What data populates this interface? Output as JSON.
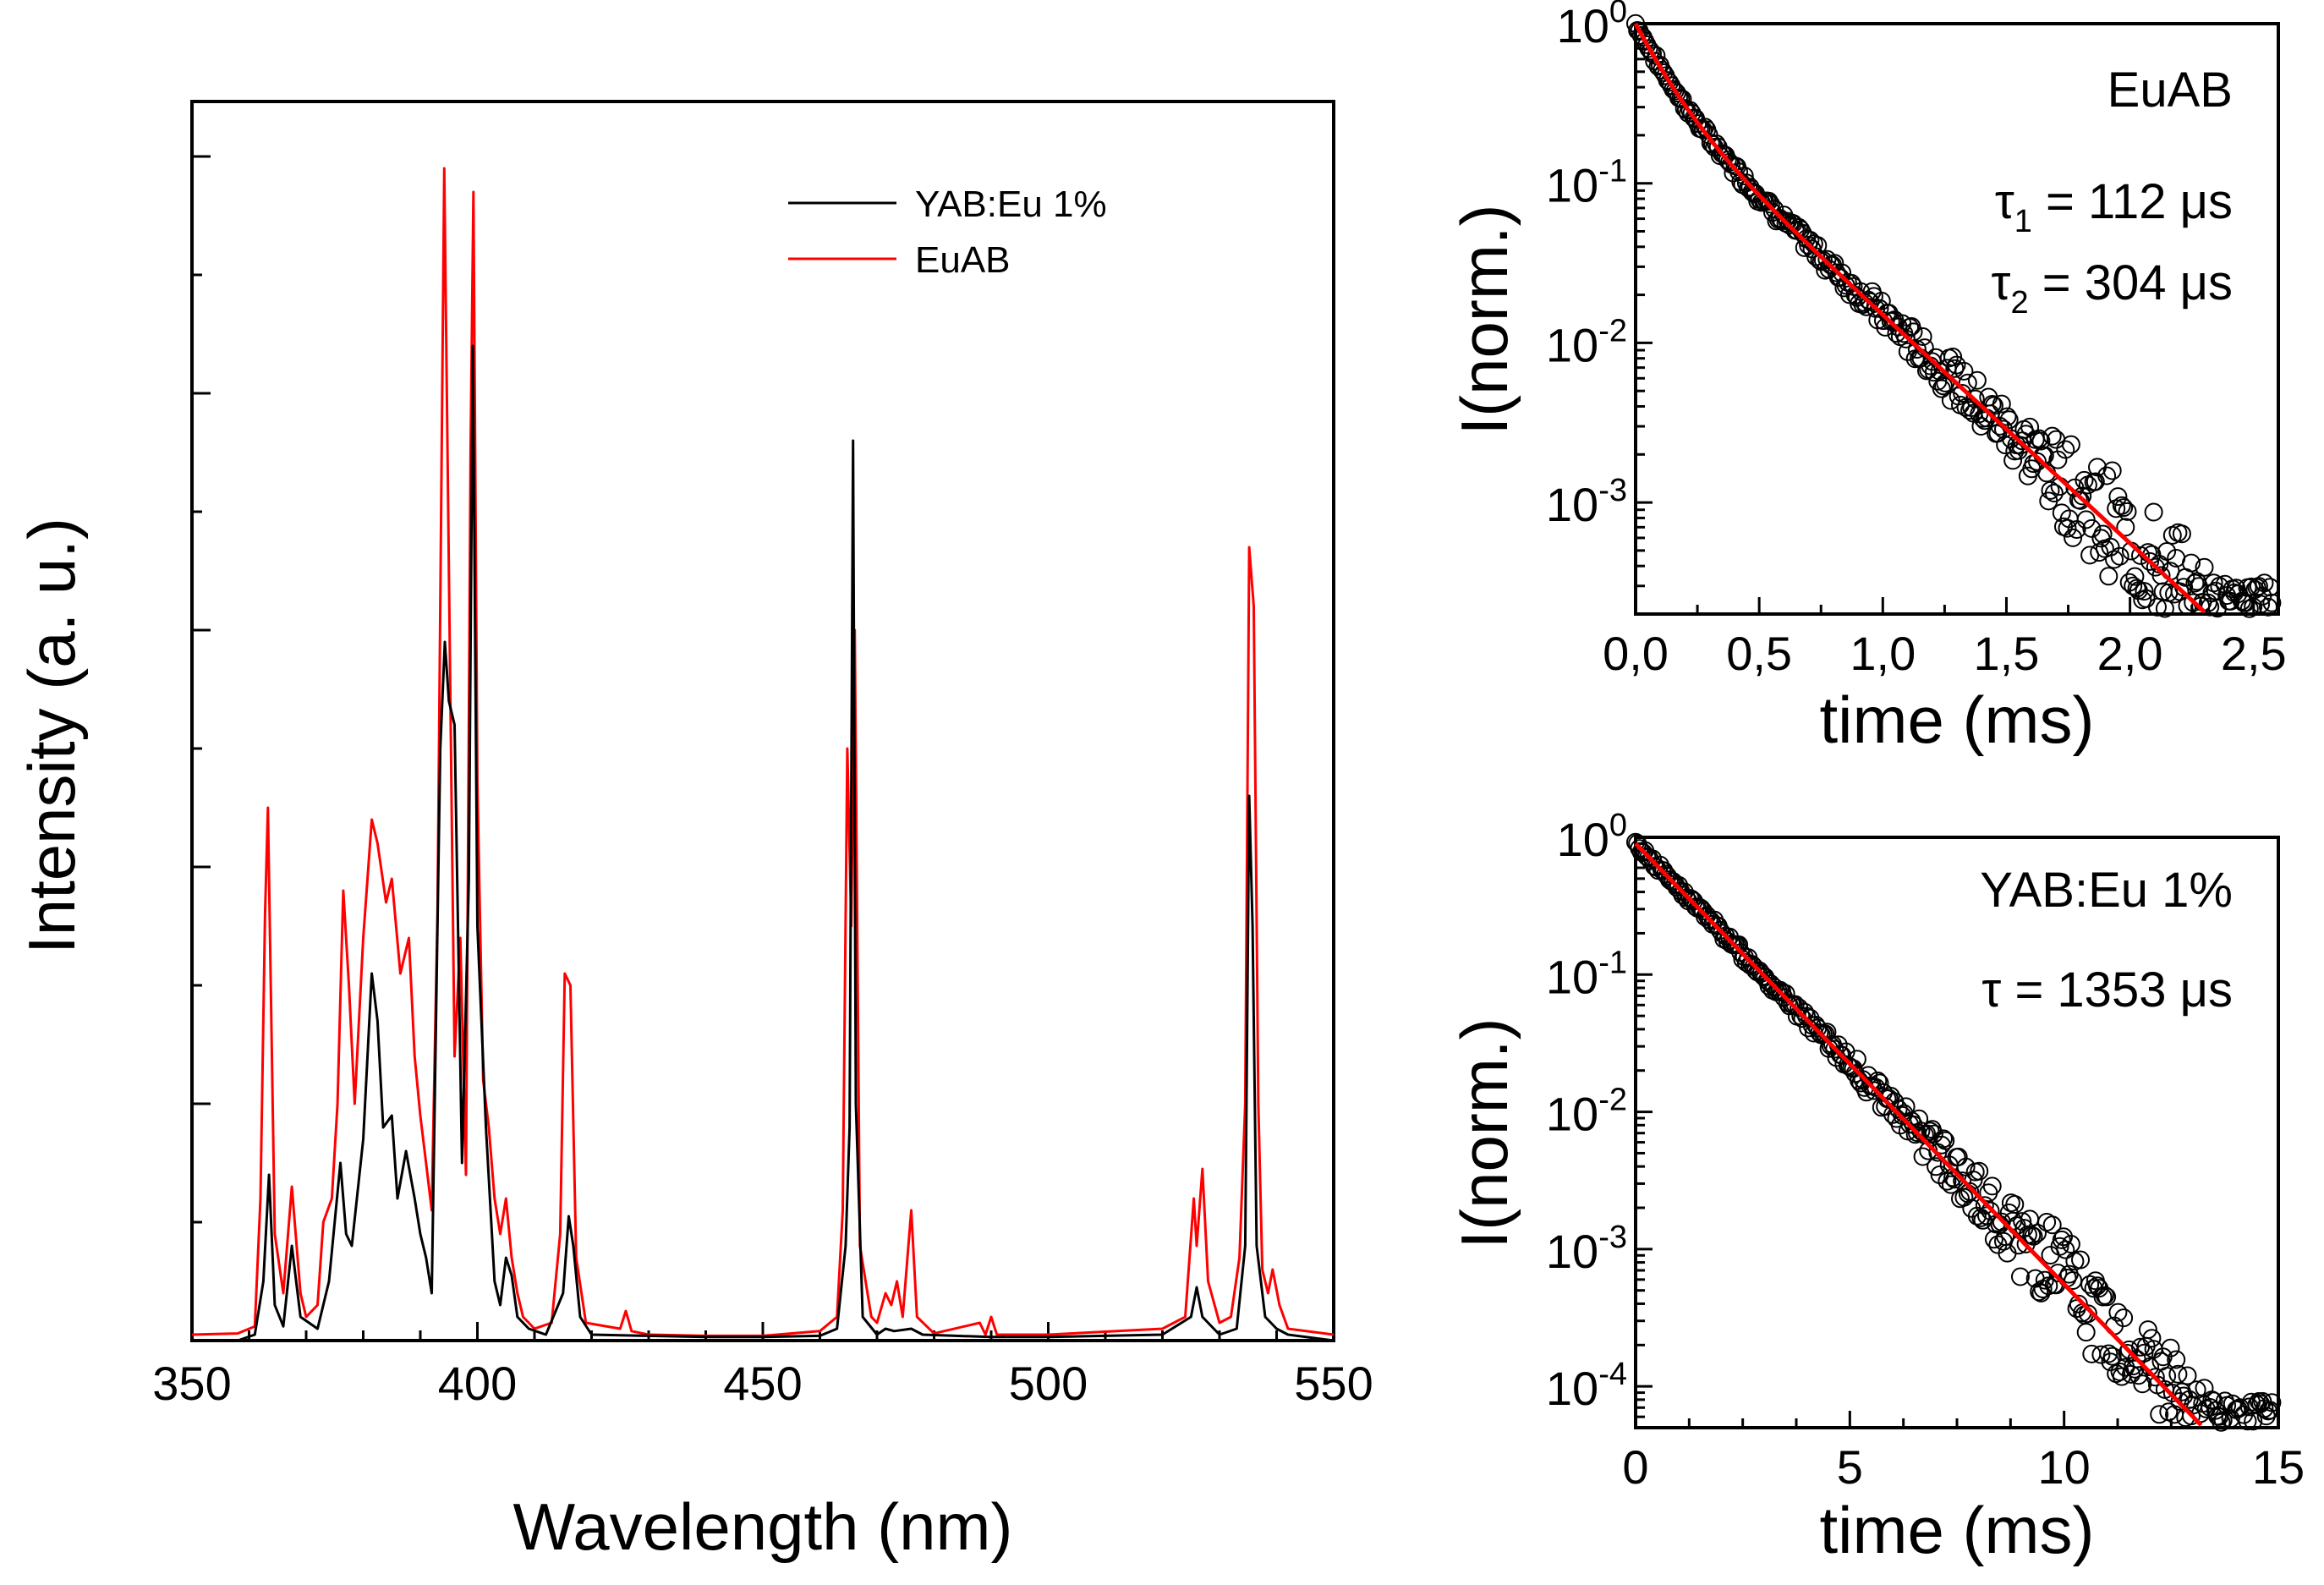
{
  "chart_data": [
    {
      "type": "line",
      "id": "spectrum",
      "title": "",
      "xlabel": "Wavelength (nm)",
      "ylabel": "Intensity (a. u.)",
      "xlim": [
        350,
        550
      ],
      "ylim": [
        0,
        1.0
      ],
      "x_ticks": [
        350,
        400,
        450,
        500,
        550
      ],
      "x_tick_labels": [
        "350",
        "400",
        "450",
        "500",
        "550"
      ],
      "y_tick_labels_shown": false,
      "legend_position": "top-right",
      "colors": {
        "YAB:Eu 1%": "#000000",
        "EuAB": "#ff0000"
      },
      "series": [
        {
          "name": "YAB:Eu 1%",
          "color": "#000000",
          "points": [
            [
              350,
              0.0
            ],
            [
              358,
              0.0
            ],
            [
              361,
              0.005
            ],
            [
              362.5,
              0.05
            ],
            [
              363.5,
              0.14
            ],
            [
              364.5,
              0.03
            ],
            [
              366,
              0.012
            ],
            [
              367.5,
              0.08
            ],
            [
              369,
              0.02
            ],
            [
              372,
              0.01
            ],
            [
              374,
              0.05
            ],
            [
              376,
              0.15
            ],
            [
              377,
              0.09
            ],
            [
              378,
              0.08
            ],
            [
              380,
              0.17
            ],
            [
              381.5,
              0.31
            ],
            [
              382.5,
              0.27
            ],
            [
              383.5,
              0.18
            ],
            [
              385,
              0.19
            ],
            [
              386,
              0.12
            ],
            [
              387.5,
              0.16
            ],
            [
              389,
              0.12
            ],
            [
              390,
              0.09
            ],
            [
              391,
              0.07
            ],
            [
              392,
              0.04
            ],
            [
              393.5,
              0.5
            ],
            [
              394.3,
              0.59
            ],
            [
              395,
              0.54
            ],
            [
              396,
              0.52
            ],
            [
              397.3,
              0.15
            ],
            [
              398.5,
              0.39
            ],
            [
              399.2,
              0.84
            ],
            [
              400,
              0.35
            ],
            [
              401.5,
              0.18
            ],
            [
              403,
              0.05
            ],
            [
              404,
              0.03
            ],
            [
              405,
              0.07
            ],
            [
              406,
              0.055
            ],
            [
              407,
              0.02
            ],
            [
              409,
              0.01
            ],
            [
              412,
              0.005
            ],
            [
              415,
              0.04
            ],
            [
              416,
              0.105
            ],
            [
              416.8,
              0.08
            ],
            [
              418,
              0.02
            ],
            [
              420,
              0.005
            ],
            [
              430,
              0.004
            ],
            [
              440,
              0.003
            ],
            [
              450,
              0.003
            ],
            [
              460,
              0.004
            ],
            [
              463,
              0.01
            ],
            [
              464.5,
              0.08
            ],
            [
              465.2,
              0.18
            ],
            [
              465.8,
              0.76
            ],
            [
              466.3,
              0.2
            ],
            [
              467.5,
              0.02
            ],
            [
              470,
              0.005
            ],
            [
              471.5,
              0.01
            ],
            [
              473,
              0.008
            ],
            [
              476,
              0.01
            ],
            [
              478,
              0.005
            ],
            [
              490,
              0.003
            ],
            [
              500,
              0.003
            ],
            [
              520,
              0.005
            ],
            [
              525,
              0.02
            ],
            [
              526,
              0.045
            ],
            [
              527,
              0.02
            ],
            [
              530,
              0.005
            ],
            [
              533,
              0.01
            ],
            [
              534.5,
              0.08
            ],
            [
              535.2,
              0.46
            ],
            [
              535.8,
              0.35
            ],
            [
              536.5,
              0.08
            ],
            [
              538,
              0.02
            ],
            [
              539,
              0.015
            ],
            [
              540,
              0.01
            ],
            [
              542,
              0.005
            ],
            [
              550,
              0.0
            ]
          ]
        },
        {
          "name": "EuAB",
          "color": "#ff0000",
          "points": [
            [
              350,
              0.005
            ],
            [
              358,
              0.006
            ],
            [
              361,
              0.012
            ],
            [
              362,
              0.12
            ],
            [
              362.8,
              0.36
            ],
            [
              363.3,
              0.45
            ],
            [
              364.5,
              0.09
            ],
            [
              366,
              0.04
            ],
            [
              367.5,
              0.13
            ],
            [
              369,
              0.04
            ],
            [
              370,
              0.02
            ],
            [
              372,
              0.03
            ],
            [
              373,
              0.1
            ],
            [
              374.5,
              0.12
            ],
            [
              375.5,
              0.2
            ],
            [
              376.5,
              0.38
            ],
            [
              377.5,
              0.3
            ],
            [
              378.5,
              0.2
            ],
            [
              380,
              0.34
            ],
            [
              381.5,
              0.44
            ],
            [
              382.5,
              0.42
            ],
            [
              384,
              0.37
            ],
            [
              385,
              0.39
            ],
            [
              386.5,
              0.31
            ],
            [
              388,
              0.34
            ],
            [
              389,
              0.24
            ],
            [
              390,
              0.19
            ],
            [
              391,
              0.15
            ],
            [
              392,
              0.11
            ],
            [
              393,
              0.36
            ],
            [
              394.2,
              0.99
            ],
            [
              395,
              0.65
            ],
            [
              396,
              0.24
            ],
            [
              397,
              0.34
            ],
            [
              398,
              0.14
            ],
            [
              398.8,
              0.75
            ],
            [
              399.3,
              0.97
            ],
            [
              400,
              0.47
            ],
            [
              401,
              0.22
            ],
            [
              402,
              0.18
            ],
            [
              403,
              0.12
            ],
            [
              404,
              0.09
            ],
            [
              405,
              0.12
            ],
            [
              406,
              0.07
            ],
            [
              407,
              0.04
            ],
            [
              408,
              0.02
            ],
            [
              410,
              0.01
            ],
            [
              413,
              0.015
            ],
            [
              414.5,
              0.09
            ],
            [
              415.3,
              0.31
            ],
            [
              416.3,
              0.3
            ],
            [
              417.3,
              0.07
            ],
            [
              419,
              0.015
            ],
            [
              425,
              0.01
            ],
            [
              426,
              0.025
            ],
            [
              427,
              0.008
            ],
            [
              430,
              0.005
            ],
            [
              440,
              0.004
            ],
            [
              450,
              0.004
            ],
            [
              460,
              0.008
            ],
            [
              463,
              0.02
            ],
            [
              464,
              0.11
            ],
            [
              464.8,
              0.5
            ],
            [
              465.5,
              0.35
            ],
            [
              466.1,
              0.6
            ],
            [
              467,
              0.08
            ],
            [
              469,
              0.02
            ],
            [
              470,
              0.015
            ],
            [
              471.5,
              0.04
            ],
            [
              472.5,
              0.03
            ],
            [
              473.5,
              0.05
            ],
            [
              474.5,
              0.02
            ],
            [
              476,
              0.11
            ],
            [
              477,
              0.02
            ],
            [
              480,
              0.006
            ],
            [
              488,
              0.015
            ],
            [
              489,
              0.005
            ],
            [
              490,
              0.02
            ],
            [
              491,
              0.005
            ],
            [
              500,
              0.005
            ],
            [
              520,
              0.01
            ],
            [
              524,
              0.02
            ],
            [
              525.5,
              0.12
            ],
            [
              526,
              0.08
            ],
            [
              527,
              0.145
            ],
            [
              528,
              0.05
            ],
            [
              530,
              0.015
            ],
            [
              532,
              0.02
            ],
            [
              533.5,
              0.07
            ],
            [
              534.5,
              0.2
            ],
            [
              535.2,
              0.67
            ],
            [
              536,
              0.62
            ],
            [
              536.8,
              0.2
            ],
            [
              537.5,
              0.06
            ],
            [
              538.5,
              0.04
            ],
            [
              539.3,
              0.06
            ],
            [
              540.5,
              0.03
            ],
            [
              542,
              0.01
            ],
            [
              550,
              0.005
            ]
          ]
        }
      ]
    },
    {
      "type": "scatter",
      "id": "decay-euab",
      "title": "",
      "annotation_label": "EuAB",
      "xlabel": "time (ms)",
      "ylabel": "I(norm.)",
      "xlim": [
        0,
        2.6
      ],
      "ylim": [
        0.0002,
        1.0
      ],
      "yscale": "log",
      "x_ticks": [
        0.0,
        0.5,
        1.0,
        1.5,
        2.0,
        2.5
      ],
      "x_tick_labels": [
        "0,0",
        "0,5",
        "1,0",
        "1,5",
        "2,0",
        "2,5"
      ],
      "y_ticks": [
        1,
        0.1,
        0.01,
        0.001
      ],
      "y_tick_base": "10",
      "y_tick_exponents": [
        "0",
        "-1",
        "-2",
        "-3"
      ],
      "tau_lines": [
        {
          "symbol": "τ",
          "sub": "1",
          "rest": " = 112 μs"
        },
        {
          "symbol": "τ",
          "sub": "2",
          "rest": " = 304 μs"
        }
      ],
      "fit": {
        "color": "#ff0000",
        "model": "biexponential",
        "a1": 0.6,
        "tau1_us": 112,
        "a2": 0.4,
        "tau2_us": 304
      },
      "data_marker": "open-circle",
      "noise_floor": 0.0002
    },
    {
      "type": "scatter",
      "id": "decay-yab",
      "title": "",
      "annotation_label": "YAB:Eu 1%",
      "xlabel": "time (ms)",
      "ylabel": "I(norm.)",
      "xlim": [
        0,
        15
      ],
      "ylim": [
        5e-05,
        1.0
      ],
      "yscale": "log",
      "x_ticks": [
        0,
        5,
        10,
        15
      ],
      "x_tick_labels": [
        "0",
        "5",
        "10",
        "15"
      ],
      "y_ticks": [
        1,
        0.1,
        0.01,
        0.001,
        0.0001
      ],
      "y_tick_base": "10",
      "y_tick_exponents": [
        "0",
        "-1",
        "-2",
        "-3",
        "-4"
      ],
      "tau_lines": [
        {
          "symbol": "τ",
          "sub": "",
          "rest": " = 1353 μs"
        }
      ],
      "fit": {
        "color": "#ff0000",
        "model": "monoexponential",
        "a1": 0.9,
        "tau1_us": 1353
      },
      "data_marker": "open-circle",
      "noise_floor": 5e-05
    }
  ]
}
